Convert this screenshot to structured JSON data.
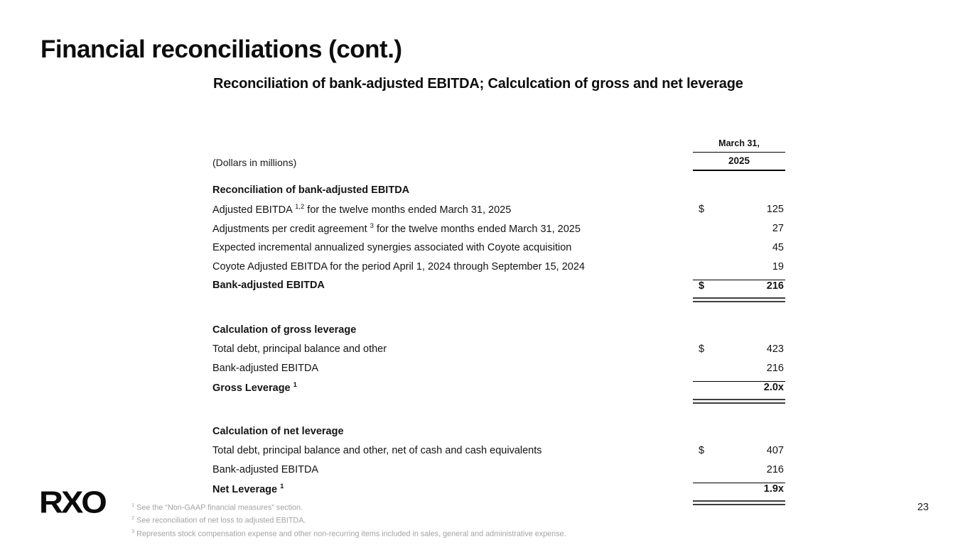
{
  "slide": {
    "title": "Financial reconciliations (cont.)",
    "subtitle": "Reconciliation of bank-adjusted EBITDA; Calculcation of gross and net leverage",
    "logo_text": "RXO",
    "page_number": "23"
  },
  "table": {
    "header": {
      "period_line1": "March 31,",
      "period_line2": "2025",
      "units_note": "(Dollars in millions)"
    },
    "rows": [
      {
        "label": "Reconciliation of bank-adjusted EBITDA"
      },
      {
        "label_pre": "Adjusted EBITDA ",
        "sup": "1,2",
        "label_post": " for the twelve months ended March 31, 2025",
        "currency": "$",
        "value": "125"
      },
      {
        "label_pre": "Adjustments per credit agreement ",
        "sup": "3",
        "label_post": " for the twelve months ended March 31, 2025",
        "value": "27"
      },
      {
        "label": "Expected incremental annualized synergies associated with Coyote acquisition",
        "value": "45"
      },
      {
        "label": "Coyote Adjusted EBITDA for the period April 1, 2024 through September 15, 2024",
        "value": "19"
      },
      {
        "label": "Bank-adjusted EBITDA",
        "currency": "$",
        "value": "216"
      },
      {
        "label": "Calculation of gross leverage"
      },
      {
        "label": "Total debt, principal balance and other",
        "currency": "$",
        "value": "423"
      },
      {
        "label": "Bank-adjusted EBITDA",
        "value": "216"
      },
      {
        "label_pre": "Gross Leverage ",
        "sup": "1",
        "value": "2.0x"
      },
      {
        "label": "Calculation of net leverage"
      },
      {
        "label": "Total debt, principal balance and other, net of cash and cash equivalents",
        "currency": "$",
        "value": "407"
      },
      {
        "label": "Bank-adjusted EBITDA",
        "value": "216"
      },
      {
        "label_pre": "Net Leverage ",
        "sup": "1",
        "value": "1.9x"
      }
    ]
  },
  "footnotes": [
    {
      "sup": "1",
      "text": " See the “Non-GAAP financial measures” section."
    },
    {
      "sup": "2",
      "text": " See reconciliation of net loss to adjusted EBITDA."
    },
    {
      "sup": "3",
      "text": " Represents stock compensation expense and other non-recurring items included in sales, general and administrative expense."
    }
  ]
}
